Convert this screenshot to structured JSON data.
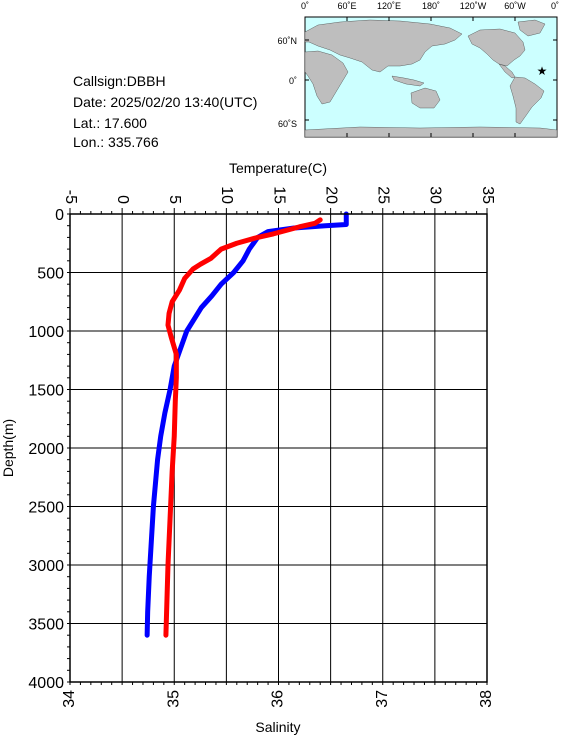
{
  "info": {
    "callsign": "Callsign:DBBH",
    "date": "Date:  2025/02/20 13:40(UTC)",
    "lat": "Lat.:  17.600",
    "lon": "Lon.:  335.766"
  },
  "map": {
    "lon_labels": [
      "0˚",
      "60˚E",
      "120˚E",
      "180˚",
      "120˚W",
      "60˚W",
      "0˚"
    ],
    "lat_labels": [
      "60˚N",
      "0˚",
      "60˚S"
    ],
    "colors": {
      "ocean": "#ccffff",
      "land": "#bebebe",
      "marker": "#ff0000"
    },
    "marker_symbol": "★"
  },
  "chart_data": {
    "type": "line",
    "xlabel_top": "Temperature(C)",
    "xlabel_bottom": "Salinity",
    "ylabel": "Depth(m)",
    "temperature_range": [
      -5,
      35
    ],
    "salinity_range": [
      34,
      38
    ],
    "depth_range": [
      0,
      4000
    ],
    "depth_inverted": true,
    "grid": true,
    "temperature_ticks": [
      "-5",
      "0",
      "5",
      "10",
      "15",
      "20",
      "25",
      "30",
      "35"
    ],
    "salinity_ticks": [
      "34",
      "35",
      "36",
      "37",
      "38"
    ],
    "depth_ticks": [
      "0",
      "500",
      "1000",
      "1500",
      "2000",
      "2500",
      "3000",
      "3500",
      "4000"
    ],
    "series": [
      {
        "variable": "temperature",
        "color": "#0000ff",
        "points": [
          [
            21.5,
            0
          ],
          [
            21.5,
            50
          ],
          [
            21.5,
            90
          ],
          [
            19.5,
            100
          ],
          [
            16.5,
            120
          ],
          [
            14.0,
            150
          ],
          [
            13.0,
            200
          ],
          [
            12.2,
            300
          ],
          [
            11.6,
            400
          ],
          [
            10.7,
            500
          ],
          [
            9.5,
            600
          ],
          [
            8.6,
            700
          ],
          [
            7.6,
            800
          ],
          [
            6.9,
            900
          ],
          [
            6.2,
            1000
          ],
          [
            5.6,
            1150
          ],
          [
            5.0,
            1300
          ],
          [
            4.6,
            1500
          ],
          [
            4.1,
            1700
          ],
          [
            3.7,
            1900
          ],
          [
            3.4,
            2100
          ],
          [
            3.2,
            2300
          ],
          [
            3.0,
            2500
          ],
          [
            2.8,
            2800
          ],
          [
            2.6,
            3100
          ],
          [
            2.45,
            3400
          ],
          [
            2.4,
            3600
          ]
        ]
      },
      {
        "variable": "salinity",
        "color": "#ff0000",
        "points": [
          [
            36.4,
            50
          ],
          [
            36.35,
            80
          ],
          [
            36.2,
            110
          ],
          [
            35.95,
            170
          ],
          [
            35.8,
            200
          ],
          [
            35.6,
            250
          ],
          [
            35.45,
            300
          ],
          [
            35.35,
            380
          ],
          [
            35.25,
            430
          ],
          [
            35.18,
            470
          ],
          [
            35.1,
            550
          ],
          [
            35.05,
            650
          ],
          [
            34.98,
            750
          ],
          [
            34.95,
            850
          ],
          [
            34.94,
            950
          ],
          [
            34.97,
            1050
          ],
          [
            35.02,
            1200
          ],
          [
            35.02,
            1400
          ],
          [
            35.01,
            1600
          ],
          [
            35.0,
            1900
          ],
          [
            34.98,
            2200
          ],
          [
            34.96,
            2600
          ],
          [
            34.94,
            3000
          ],
          [
            34.93,
            3300
          ],
          [
            34.92,
            3600
          ]
        ]
      }
    ]
  }
}
